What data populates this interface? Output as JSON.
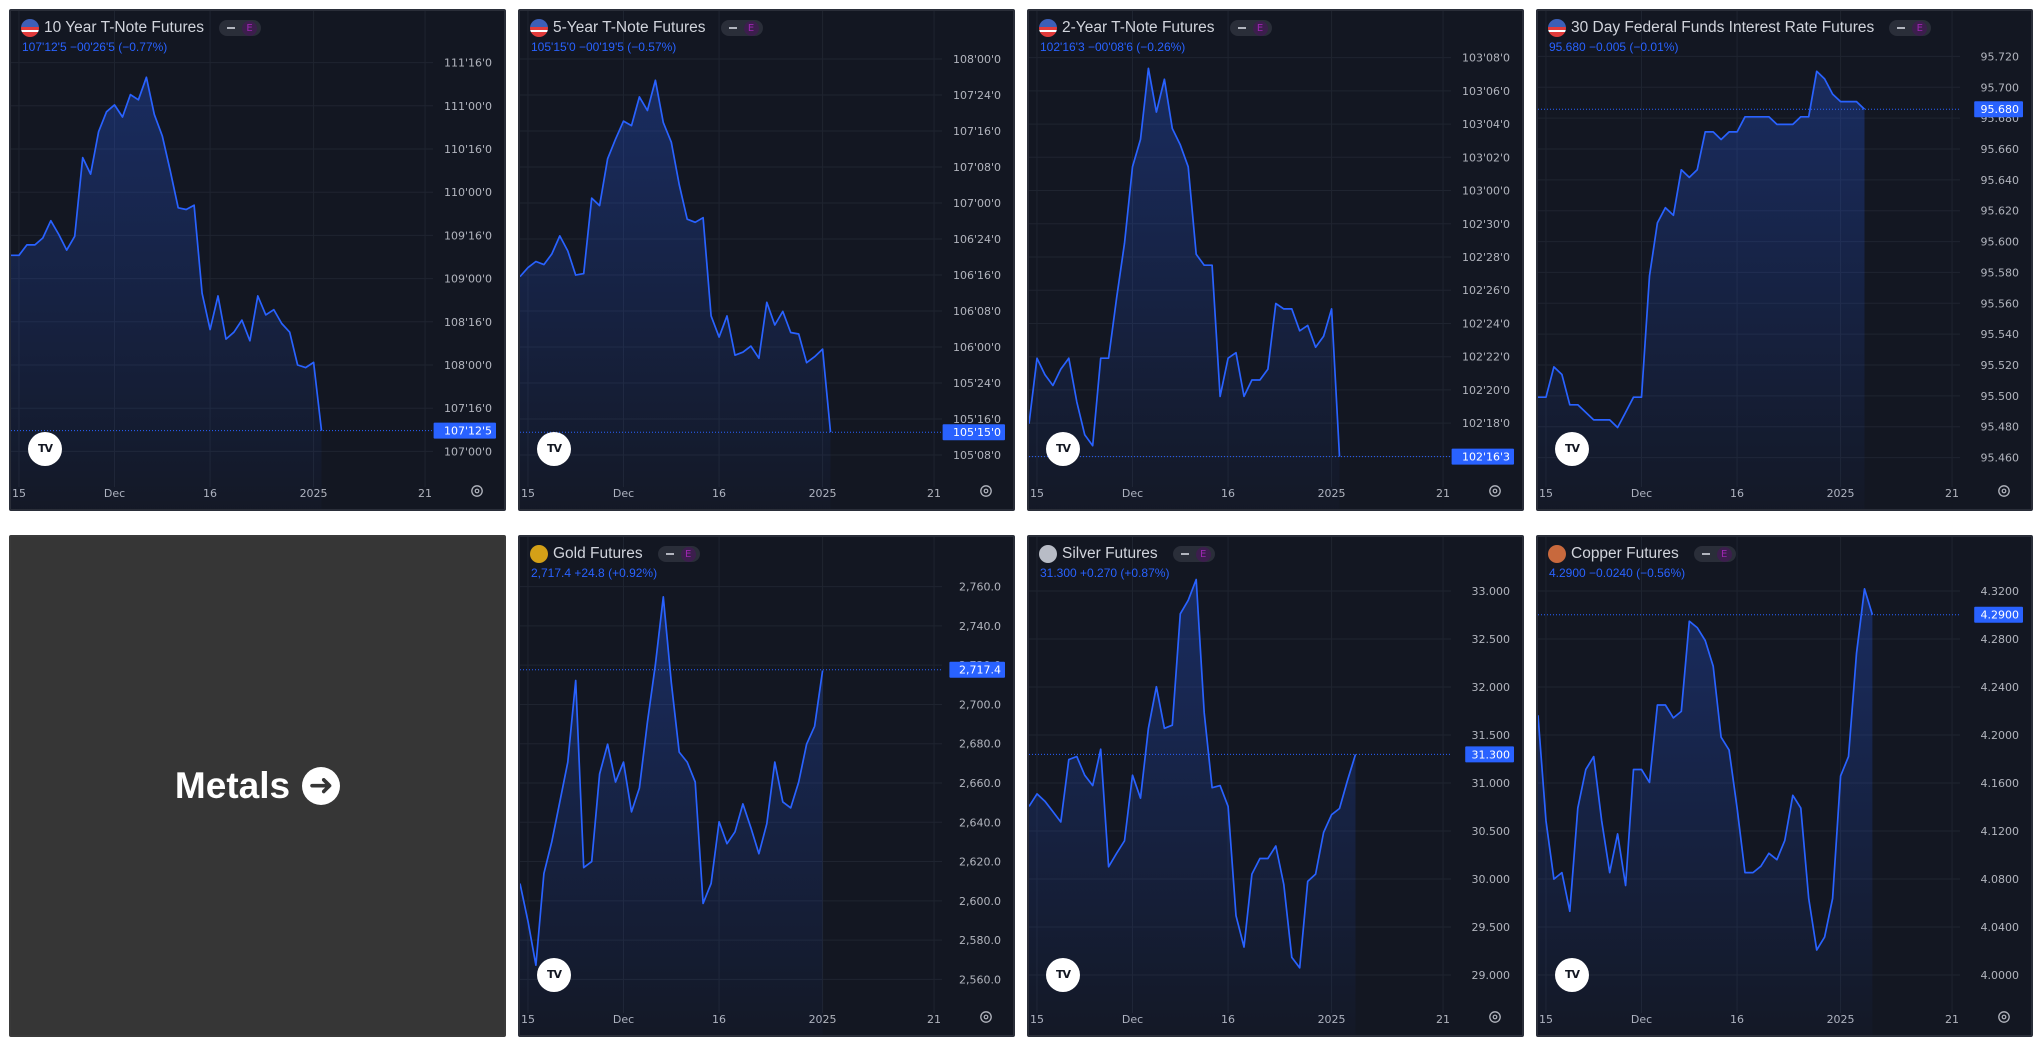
{
  "colors": {
    "background": "#131722",
    "line": "#2962ff",
    "text": "#d1d4dc",
    "axis_text": "#b2b5be",
    "grid": "#1f2430",
    "tag": "#2962ff",
    "metals_bg": "#363636"
  },
  "metals": {
    "label": "Metals",
    "icon": "arrow-right-circle-icon"
  },
  "tv_logo": "TV",
  "tiles": [
    {
      "name": "ten-year-tnote",
      "title": "10 Year T-Note Futures",
      "icon": "us-flag-icon",
      "quote": "107'12'5  −00'26'5 (−0.77%)",
      "chart_data": {
        "type": "area",
        "y_ticks": [
          "111'16'0",
          "111'00'0",
          "110'16'0",
          "110'00'0",
          "109'16'0",
          "109'00'0",
          "108'16'0",
          "108'00'0",
          "107'16'0",
          "107'00'0"
        ],
        "ylim": [
          106.9,
          111.9
        ],
        "last_label": "107'12'5",
        "last_value": 107.39,
        "x_ticks": [
          {
            "label": "15",
            "i": 1
          },
          {
            "label": "Dec",
            "i": 13
          },
          {
            "label": "16",
            "i": 25
          },
          {
            "label": "2025",
            "i": 38
          },
          {
            "label": "21",
            "i": 52
          }
        ],
        "values": [
          109.42,
          109.42,
          109.54,
          109.54,
          109.62,
          109.82,
          109.66,
          109.48,
          109.64,
          110.55,
          110.36,
          110.85,
          111.08,
          111.16,
          111.02,
          111.28,
          111.22,
          111.48,
          111.05,
          110.8,
          110.4,
          109.97,
          109.95,
          110.0,
          108.98,
          108.56,
          108.95,
          108.45,
          108.53,
          108.67,
          108.43,
          108.95,
          108.73,
          108.79,
          108.63,
          108.53,
          108.15,
          108.12,
          108.18,
          107.39
        ]
      }
    },
    {
      "name": "five-year-tnote",
      "title": "5-Year T-Note Futures",
      "icon": "us-flag-icon",
      "quote": "105'15'0  −00'19'5 (−0.57%)",
      "chart_data": {
        "type": "area",
        "y_ticks": [
          "108'00'0",
          "107'24'0",
          "107'16'0",
          "107'08'0",
          "107'00'0",
          "106'24'0",
          "106'16'0",
          "106'08'0",
          "106'00'0",
          "105'24'0",
          "105'16'0",
          "105'08'0"
        ],
        "ylim": [
          105.2,
          108.06
        ],
        "last_label": "105'15'0",
        "last_value": 105.47,
        "x_ticks": [
          {
            "label": "15",
            "i": 1
          },
          {
            "label": "Dec",
            "i": 13
          },
          {
            "label": "16",
            "i": 25
          },
          {
            "label": "2025",
            "i": 38
          },
          {
            "label": "21",
            "i": 52
          }
        ],
        "values": [
          106.5,
          106.56,
          106.6,
          106.58,
          106.65,
          106.77,
          106.67,
          106.51,
          106.52,
          107.02,
          106.97,
          107.28,
          107.41,
          107.53,
          107.5,
          107.69,
          107.6,
          107.8,
          107.52,
          107.39,
          107.11,
          106.88,
          106.86,
          106.89,
          106.24,
          106.1,
          106.24,
          105.98,
          106.0,
          106.04,
          105.96,
          106.33,
          106.18,
          106.27,
          106.13,
          106.12,
          105.93,
          105.97,
          106.02,
          105.47
        ]
      }
    },
    {
      "name": "two-year-tnote",
      "title": "2-Year T-Note Futures",
      "icon": "us-flag-icon",
      "quote": "102'16'3  −00'08'6 (−0.26%)",
      "chart_data": {
        "type": "area",
        "y_ticks": [
          "103'08'0",
          "103'06'0",
          "103'04'0",
          "103'02'0",
          "103'00'0",
          "102'30'0",
          "102'28'0",
          "102'26'0",
          "102'24'0",
          "102'22'0",
          "102'20'0",
          "102'18'0",
          "102'16'0"
        ],
        "ylim": [
          102.48,
          103.27
        ],
        "last_label": "102'16'3",
        "last_value": 102.51,
        "x_ticks": [
          {
            "label": "15",
            "i": 1
          },
          {
            "label": "Dec",
            "i": 13
          },
          {
            "label": "16",
            "i": 25
          },
          {
            "label": "2025",
            "i": 38
          },
          {
            "label": "21",
            "i": 52
          }
        ],
        "values": [
          102.57,
          102.69,
          102.66,
          102.64,
          102.67,
          102.69,
          102.61,
          102.55,
          102.53,
          102.69,
          102.69,
          102.8,
          102.9,
          103.04,
          103.09,
          103.22,
          103.14,
          103.2,
          103.11,
          103.08,
          103.04,
          102.88,
          102.86,
          102.86,
          102.62,
          102.69,
          102.7,
          102.62,
          102.65,
          102.65,
          102.67,
          102.79,
          102.78,
          102.78,
          102.74,
          102.75,
          102.71,
          102.73,
          102.78,
          102.51
        ]
      }
    },
    {
      "name": "thirty-day-fed-funds",
      "title": "30 Day Federal Funds Interest Rate Futures",
      "icon": "us-flag-icon",
      "quote": "95.680  −0.005 (−0.01%)",
      "chart_data": {
        "type": "area",
        "y_ticks": [
          "95.720",
          "95.700",
          "95.680",
          "95.660",
          "95.640",
          "95.620",
          "95.600",
          "95.580",
          "95.560",
          "95.540",
          "95.520",
          "95.500",
          "95.480",
          "95.460"
        ],
        "ylim": [
          95.44,
          95.725
        ],
        "last_label": "95.680",
        "last_value": 95.68,
        "x_ticks": [
          {
            "label": "15",
            "i": 1
          },
          {
            "label": "Dec",
            "i": 13
          },
          {
            "label": "16",
            "i": 25
          },
          {
            "label": "2025",
            "i": 38
          },
          {
            "label": "21",
            "i": 52
          }
        ],
        "values": [
          95.49,
          95.49,
          95.51,
          95.505,
          95.485,
          95.485,
          95.48,
          95.475,
          95.475,
          95.475,
          95.47,
          95.48,
          95.49,
          95.49,
          95.57,
          95.605,
          95.615,
          95.61,
          95.64,
          95.635,
          95.64,
          95.665,
          95.665,
          95.66,
          95.665,
          95.665,
          95.675,
          95.675,
          95.675,
          95.675,
          95.67,
          95.67,
          95.67,
          95.675,
          95.675,
          95.705,
          95.7,
          95.69,
          95.685,
          95.685,
          95.685,
          95.68
        ]
      }
    },
    {
      "name": "gold-futures",
      "title": "Gold Futures",
      "icon": "gold-icon",
      "quote": "2,717.4  +24.8 (+0.92%)",
      "chart_data": {
        "type": "area",
        "y_ticks": [
          "2,760.0",
          "2,740.0",
          "2,720.0",
          "2,700.0",
          "2,680.0",
          "2,660.0",
          "2,640.0",
          "2,620.0",
          "2,600.0",
          "2,580.0",
          "2,560.0"
        ],
        "ylim": [
          2552,
          2769
        ],
        "last_label": "2,717.4",
        "last_value": 2717.4,
        "x_ticks": [
          {
            "label": "15",
            "i": 1
          },
          {
            "label": "Dec",
            "i": 13
          },
          {
            "label": "16",
            "i": 25
          },
          {
            "label": "2025",
            "i": 38
          },
          {
            "label": "21",
            "i": 52
          }
        ],
        "values": [
          2610,
          2591,
          2569,
          2615,
          2631,
          2651,
          2671,
          2712,
          2618,
          2621,
          2665,
          2680,
          2661,
          2671,
          2646,
          2658,
          2691,
          2720,
          2754,
          2711,
          2676,
          2671,
          2661,
          2600,
          2610,
          2641,
          2630,
          2636,
          2650,
          2638,
          2625,
          2640,
          2671,
          2651,
          2648,
          2661,
          2680,
          2689,
          2717
        ]
      }
    },
    {
      "name": "silver-futures",
      "title": "Silver Futures",
      "icon": "silver-icon",
      "quote": "31.300  +0.270 (+0.87%)",
      "chart_data": {
        "type": "area",
        "y_ticks": [
          "33.000",
          "32.500",
          "32.000",
          "31.500",
          "31.000",
          "30.500",
          "30.000",
          "29.500",
          "29.000"
        ],
        "ylim": [
          28.95,
          33.1
        ],
        "last_label": "31.300",
        "last_value": 31.3,
        "x_ticks": [
          {
            "label": "15",
            "i": 1
          },
          {
            "label": "Dec",
            "i": 13
          },
          {
            "label": "16",
            "i": 25
          },
          {
            "label": "2025",
            "i": 38
          },
          {
            "label": "21",
            "i": 52
          }
        ],
        "values": [
          30.8,
          30.92,
          30.85,
          30.75,
          30.65,
          31.25,
          31.28,
          31.1,
          31.0,
          31.35,
          30.22,
          30.35,
          30.47,
          31.1,
          30.88,
          31.55,
          31.95,
          31.55,
          31.58,
          32.65,
          32.78,
          32.98,
          31.7,
          30.98,
          31.0,
          30.8,
          29.75,
          29.45,
          30.15,
          30.3,
          30.3,
          30.42,
          30.05,
          29.35,
          29.25,
          30.08,
          30.15,
          30.55,
          30.72,
          30.78,
          31.05,
          31.3
        ]
      }
    },
    {
      "name": "copper-futures",
      "title": "Copper Futures",
      "icon": "copper-icon",
      "quote": "4.2900  −0.0240 (−0.56%)",
      "chart_data": {
        "type": "area",
        "y_ticks": [
          "4.3200",
          "4.2800",
          "4.2400",
          "4.2000",
          "4.1600",
          "4.1200",
          "4.0800",
          "4.0400",
          "4.0000"
        ],
        "ylim": [
          3.992,
          4.327
        ],
        "last_label": "4.2900",
        "last_value": 4.29,
        "x_ticks": [
          {
            "label": "15",
            "i": 1
          },
          {
            "label": "Dec",
            "i": 13
          },
          {
            "label": "16",
            "i": 25
          },
          {
            "label": "2025",
            "i": 38
          },
          {
            "label": "21",
            "i": 52
          }
        ],
        "values": [
          4.212,
          4.13,
          4.085,
          4.09,
          4.06,
          4.14,
          4.17,
          4.18,
          4.13,
          4.09,
          4.12,
          4.08,
          4.17,
          4.17,
          4.16,
          4.22,
          4.22,
          4.21,
          4.215,
          4.285,
          4.28,
          4.27,
          4.25,
          4.195,
          4.185,
          4.14,
          4.09,
          4.09,
          4.095,
          4.105,
          4.1,
          4.115,
          4.15,
          4.14,
          4.07,
          4.03,
          4.04,
          4.07,
          4.165,
          4.18,
          4.26,
          4.31,
          4.29
        ]
      }
    }
  ]
}
